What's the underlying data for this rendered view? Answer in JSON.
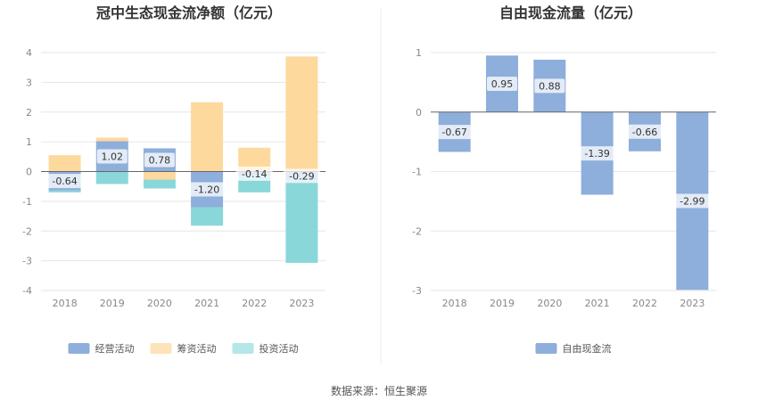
{
  "chart_data": [
    {
      "type": "bar",
      "stacked": true,
      "title": "冠中生态现金流净额（亿元）",
      "categories": [
        "2018",
        "2019",
        "2020",
        "2021",
        "2022",
        "2023"
      ],
      "ylim": [
        -4,
        4
      ],
      "yticks": [
        "4",
        "3",
        "2",
        "1",
        "0",
        "-1",
        "-2",
        "-3",
        "-4"
      ],
      "grid": true,
      "legend_position": "bottom",
      "series": [
        {
          "name": "经营活动",
          "color": "#8eaedb",
          "values": [
            -0.64,
            1.02,
            0.78,
            -1.2,
            -0.14,
            -0.29
          ],
          "labels": [
            "-0.64",
            "1.02",
            "0.78",
            "-1.20",
            "-0.14",
            "-0.29"
          ]
        },
        {
          "name": "筹资活动",
          "color": "#fdd99e",
          "values": [
            0.55,
            0.12,
            -0.27,
            2.33,
            0.8,
            3.87
          ]
        },
        {
          "name": "投资活动",
          "color": "#8ad7da",
          "values": [
            -0.06,
            -0.42,
            -0.3,
            -0.62,
            -0.56,
            -2.78
          ]
        }
      ]
    },
    {
      "type": "bar",
      "title": "自由现金流量（亿元）",
      "categories": [
        "2018",
        "2019",
        "2020",
        "2021",
        "2022",
        "2023"
      ],
      "ylim": [
        -3,
        1
      ],
      "yticks": [
        "1",
        "0",
        "-1",
        "-2",
        "-3"
      ],
      "grid": true,
      "legend_position": "bottom",
      "series": [
        {
          "name": "自由现金流",
          "color": "#8eaedb",
          "values": [
            -0.67,
            0.95,
            0.88,
            -1.39,
            -0.66,
            -2.99
          ],
          "labels": [
            "-0.67",
            "0.95",
            "0.88",
            "-1.39",
            "-0.66",
            "-2.99"
          ]
        }
      ]
    }
  ],
  "footer": {
    "source": "数据来源：恒生聚源"
  }
}
